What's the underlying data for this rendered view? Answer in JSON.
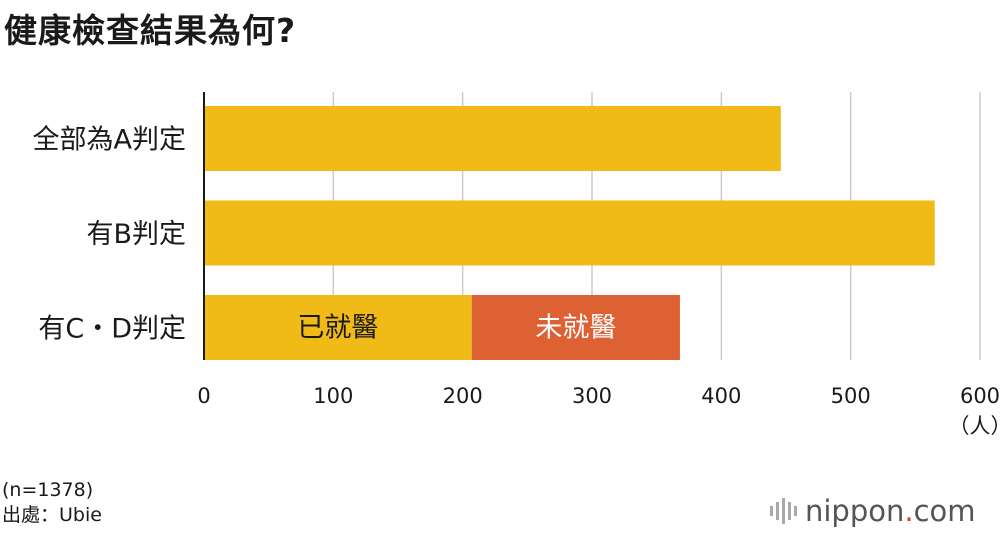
{
  "chart_data": {
    "type": "bar",
    "orientation": "horizontal",
    "stacked": true,
    "title": "健康檢查結果為何?",
    "categories": [
      "全部為A判定",
      "有B判定",
      "有C・D判定"
    ],
    "series": [
      {
        "name": "已就醫",
        "values": [
          446,
          565,
          207
        ],
        "color": "#f0bb17",
        "label_row": 2
      },
      {
        "name": "未就醫",
        "values": [
          0,
          0,
          161
        ],
        "color": "#dd6133",
        "label_row": 2
      }
    ],
    "xlim": [
      0,
      600
    ],
    "xticks": [
      "0",
      "100",
      "200",
      "300",
      "400",
      "500",
      "600"
    ],
    "xunit": "（人）",
    "grid": true
  },
  "notes": {
    "sample": "(n=1378)",
    "source": "出處：Ubie"
  },
  "logo": {
    "name": "nippon",
    "dot": ".",
    "suffix": "com"
  }
}
